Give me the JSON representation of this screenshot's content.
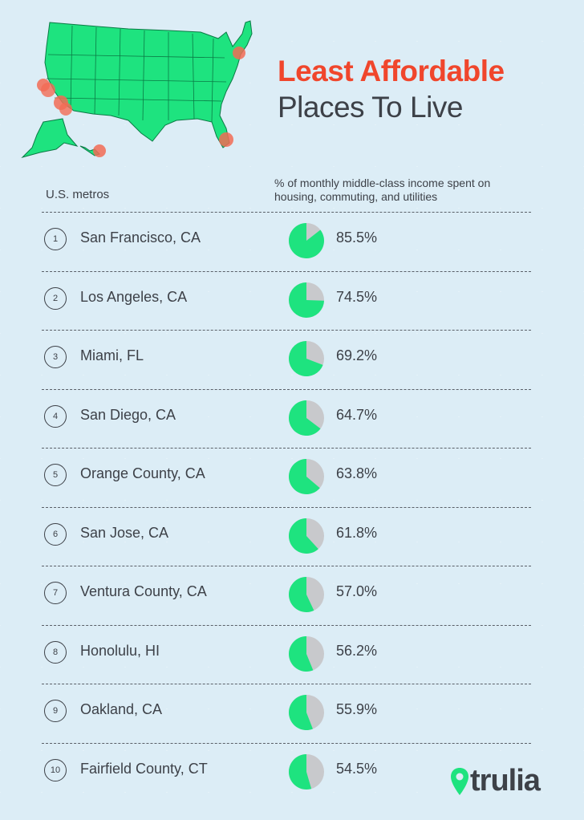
{
  "title": {
    "line1": "Least Affordable",
    "line2": "Places To Live"
  },
  "columns": {
    "metro": "U.S. metros",
    "share": "% of monthly middle-class income spent on housing, commuting, and utilities"
  },
  "brand": "trulia",
  "colors": {
    "accent": "#f0462c",
    "pie_fill": "#1ee37f",
    "pie_rest": "#c8c9cc",
    "map": "#1ee37f",
    "marker": "#f26b55"
  },
  "chart_data": {
    "type": "pie",
    "unit": "%",
    "categories": [
      "San Francisco, CA",
      "Los Angeles, CA",
      "Miami, FL",
      "San Diego, CA",
      "Orange County, CA",
      "San Jose, CA",
      "Ventura County, CA",
      "Honolulu, HI",
      "Oakland, CA",
      "Fairfield County, CT"
    ],
    "ranks": [
      "1",
      "2",
      "3",
      "4",
      "5",
      "6",
      "7",
      "8",
      "9",
      "10"
    ],
    "values": [
      85.5,
      74.5,
      69.2,
      64.7,
      63.8,
      61.8,
      57.0,
      56.2,
      55.9,
      54.5
    ],
    "labels": [
      "85.5%",
      "74.5%",
      "69.2%",
      "64.7%",
      "63.8%",
      "61.8%",
      "57.0%",
      "56.2%",
      "55.9%",
      "54.5%"
    ]
  }
}
